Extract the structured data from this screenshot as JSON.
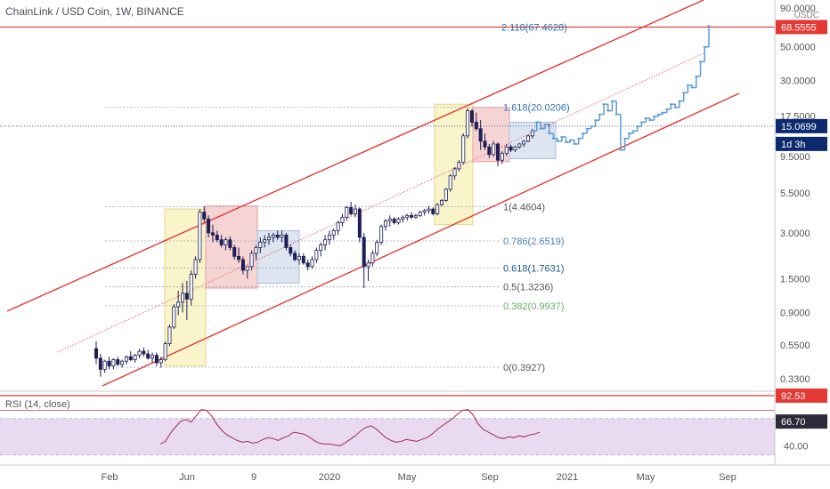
{
  "chart_title": "ChainLink / USD Coin, 1W, BINANCE",
  "quote_currency": "USDC",
  "rsi_label": "RSI (14, close)",
  "colors": {
    "channel": "#e53935",
    "candle_up": "#ffffff",
    "candle_down": "#1f1f55",
    "projection": "#5b9bd5",
    "rsi_line": "#9c2f4f",
    "rsi_band": "#e7d6ef",
    "yellow_box": "#f7f0b8",
    "red_box": "#f4c6c6",
    "blue_box": "#d2dceb",
    "price_badge": "#0d2a6e",
    "top_badge": "#e53935"
  },
  "chart_data": [
    {
      "type": "candlestick",
      "title": "ChainLink / USD Coin, 1W, BINANCE",
      "y_scale": "log",
      "y_ticks": [
        "90.0000",
        "50.0000",
        "30.0000",
        "17.5000",
        "9.5000",
        "5.5000",
        "3.0000",
        "1.5000",
        "0.9000",
        "0.5500",
        "0.3300"
      ],
      "x_ticks": [
        "Feb",
        "Jun",
        "9",
        "2020",
        "May",
        "Sep",
        "2021",
        "May",
        "Sep"
      ],
      "price_badges": {
        "current": "15.0699",
        "countdown": "1d 3h",
        "target": "68.5555"
      },
      "fib_levels": [
        {
          "label": "2.118(67.4628)",
          "value": 67.4628
        },
        {
          "label": "1.618(20.0206)",
          "value": 20.0206
        },
        {
          "label": "1(4.4604)",
          "value": 4.4604
        },
        {
          "label": "0.786(2.6519)",
          "value": 2.6519
        },
        {
          "label": "0.618(1.7631)",
          "value": 1.7631
        },
        {
          "label": "0.5(1.3236)",
          "value": 1.3236
        },
        {
          "label": "0.382(0.9937)",
          "value": 0.9937
        },
        {
          "label": "0(0.3927)",
          "value": 0.3927
        }
      ],
      "candles": [
        [
          0.52,
          0.58,
          0.41,
          0.45
        ],
        [
          0.45,
          0.48,
          0.34,
          0.38
        ],
        [
          0.38,
          0.44,
          0.36,
          0.43
        ],
        [
          0.43,
          0.46,
          0.38,
          0.4
        ],
        [
          0.4,
          0.45,
          0.38,
          0.44
        ],
        [
          0.44,
          0.46,
          0.4,
          0.41
        ],
        [
          0.41,
          0.44,
          0.39,
          0.43
        ],
        [
          0.43,
          0.47,
          0.41,
          0.46
        ],
        [
          0.46,
          0.5,
          0.43,
          0.44
        ],
        [
          0.44,
          0.48,
          0.42,
          0.47
        ],
        [
          0.47,
          0.52,
          0.45,
          0.5
        ],
        [
          0.5,
          0.53,
          0.46,
          0.48
        ],
        [
          0.48,
          0.51,
          0.44,
          0.45
        ],
        [
          0.45,
          0.49,
          0.42,
          0.47
        ],
        [
          0.47,
          0.49,
          0.4,
          0.42
        ],
        [
          0.42,
          0.46,
          0.39,
          0.44
        ],
        [
          0.44,
          0.58,
          0.43,
          0.56
        ],
        [
          0.56,
          0.75,
          0.54,
          0.72
        ],
        [
          0.72,
          1.02,
          0.7,
          0.98
        ],
        [
          0.98,
          1.25,
          0.86,
          1.05
        ],
        [
          1.05,
          1.4,
          0.9,
          1.2
        ],
        [
          1.2,
          1.45,
          0.8,
          1.1
        ],
        [
          1.1,
          1.7,
          1.0,
          1.6
        ],
        [
          1.6,
          2.1,
          1.5,
          2.0
        ],
        [
          2.0,
          4.3,
          1.9,
          4.1
        ],
        [
          4.1,
          4.5,
          3.5,
          3.7
        ],
        [
          3.7,
          3.9,
          2.8,
          3.0
        ],
        [
          3.0,
          3.4,
          2.6,
          2.9
        ],
        [
          2.9,
          3.1,
          2.6,
          2.7
        ],
        [
          2.7,
          2.9,
          2.4,
          2.5
        ],
        [
          2.5,
          2.8,
          2.3,
          2.7
        ],
        [
          2.7,
          2.85,
          2.3,
          2.4
        ],
        [
          2.4,
          2.5,
          2.0,
          2.1
        ],
        [
          2.1,
          2.4,
          1.9,
          2.0
        ],
        [
          2.0,
          2.1,
          1.6,
          1.7
        ],
        [
          1.7,
          1.8,
          1.5,
          1.8
        ],
        [
          1.8,
          2.3,
          1.7,
          2.2
        ],
        [
          2.2,
          2.5,
          2.0,
          2.4
        ],
        [
          2.4,
          2.8,
          2.2,
          2.6
        ],
        [
          2.6,
          2.9,
          2.4,
          2.7
        ],
        [
          2.7,
          3.0,
          2.5,
          2.8
        ],
        [
          2.8,
          3.0,
          2.6,
          2.9
        ],
        [
          2.9,
          3.1,
          2.7,
          2.8
        ],
        [
          2.8,
          3.1,
          2.6,
          2.9
        ],
        [
          2.9,
          3.0,
          2.3,
          2.4
        ],
        [
          2.4,
          2.5,
          2.1,
          2.2
        ],
        [
          2.2,
          2.3,
          1.95,
          2.0
        ],
        [
          2.0,
          2.2,
          1.85,
          2.1
        ],
        [
          2.1,
          2.2,
          1.85,
          1.9
        ],
        [
          1.9,
          2.0,
          1.7,
          1.8
        ],
        [
          1.8,
          2.1,
          1.75,
          2.0
        ],
        [
          2.0,
          2.4,
          1.9,
          2.3
        ],
        [
          2.3,
          2.6,
          2.1,
          2.5
        ],
        [
          2.5,
          2.9,
          2.3,
          2.7
        ],
        [
          2.7,
          3.1,
          2.5,
          2.9
        ],
        [
          2.9,
          3.2,
          2.7,
          3.1
        ],
        [
          3.1,
          3.6,
          2.9,
          3.5
        ],
        [
          3.5,
          4.0,
          3.3,
          3.8
        ],
        [
          3.8,
          4.5,
          3.6,
          4.4
        ],
        [
          4.4,
          4.8,
          3.9,
          4.0
        ],
        [
          4.0,
          4.6,
          3.8,
          4.3
        ],
        [
          4.3,
          4.4,
          2.6,
          2.8
        ],
        [
          2.8,
          3.0,
          1.3,
          1.8
        ],
        [
          1.8,
          2.0,
          1.45,
          1.9
        ],
        [
          1.9,
          2.3,
          1.8,
          2.2
        ],
        [
          2.2,
          2.7,
          2.1,
          2.6
        ],
        [
          2.6,
          3.4,
          2.5,
          3.3
        ],
        [
          3.3,
          3.7,
          3.1,
          3.6
        ],
        [
          3.6,
          3.9,
          3.3,
          3.7
        ],
        [
          3.7,
          3.8,
          3.4,
          3.5
        ],
        [
          3.5,
          3.8,
          3.4,
          3.7
        ],
        [
          3.7,
          3.9,
          3.5,
          3.8
        ],
        [
          3.8,
          4.0,
          3.6,
          3.9
        ],
        [
          3.9,
          4.1,
          3.7,
          3.8
        ],
        [
          3.8,
          4.0,
          3.7,
          3.9
        ],
        [
          3.9,
          4.2,
          3.8,
          4.1
        ],
        [
          4.1,
          4.3,
          3.9,
          4.2
        ],
        [
          4.2,
          4.5,
          4.0,
          4.3
        ],
        [
          4.3,
          4.4,
          3.9,
          4.0
        ],
        [
          4.0,
          4.7,
          3.9,
          4.6
        ],
        [
          4.6,
          5.0,
          4.5,
          4.9
        ],
        [
          4.9,
          5.9,
          4.8,
          5.8
        ],
        [
          5.8,
          7.3,
          5.6,
          7.1
        ],
        [
          7.1,
          8.1,
          6.7,
          7.9
        ],
        [
          7.9,
          9.0,
          7.6,
          8.7
        ],
        [
          8.7,
          13.5,
          8.5,
          13.0
        ],
        [
          13.0,
          19.8,
          12.5,
          19.0
        ],
        [
          19.0,
          19.5,
          15.0,
          16.0
        ],
        [
          16.0,
          18.5,
          14.0,
          14.5
        ],
        [
          14.5,
          16.5,
          10.5,
          12.0
        ],
        [
          12.0,
          13.5,
          10.5,
          11.0
        ],
        [
          11.0,
          11.5,
          9.3,
          9.8
        ],
        [
          9.8,
          12.0,
          9.5,
          11.5
        ],
        [
          11.5,
          11.8,
          8.2,
          9.0
        ],
        [
          9.0,
          10.3,
          8.5,
          10.0
        ],
        [
          10.0,
          11.5,
          9.6,
          11.0
        ],
        [
          11.0,
          11.4,
          10.2,
          10.5
        ],
        [
          10.5,
          11.2,
          10.2,
          11.0
        ],
        [
          11.0,
          11.7,
          10.7,
          11.5
        ],
        [
          11.5,
          12.2,
          11.0,
          12.0
        ],
        [
          12.0,
          13.2,
          11.8,
          13.0
        ],
        [
          13.0,
          14.5,
          12.5,
          14.0
        ]
      ],
      "projection": [
        14.0,
        16.0,
        14.5,
        15.5,
        13.5,
        12.5,
        12.0,
        12.8,
        11.8,
        12.2,
        11.5,
        12.5,
        13.5,
        14.5,
        15.0,
        16.5,
        18.0,
        21.0,
        19.0,
        22.0,
        18.0,
        10.5,
        12.5,
        13.5,
        14.0,
        15.0,
        16.0,
        17.0,
        16.5,
        17.5,
        18.0,
        18.5,
        19.5,
        21.0,
        20.0,
        22.0,
        25.0,
        28.0,
        27.0,
        32.0,
        40.0,
        50.0,
        68.56
      ],
      "rsi": [
        42,
        45,
        54,
        61,
        67,
        69,
        66,
        73,
        80,
        79,
        73,
        64,
        57,
        52,
        49,
        46,
        44,
        45,
        43,
        44,
        47,
        49,
        48,
        46,
        49,
        51,
        55,
        54,
        53,
        50,
        46,
        43,
        42,
        42,
        41,
        40,
        43,
        47,
        51,
        56,
        60,
        62,
        59,
        54,
        49,
        46,
        44,
        45,
        47,
        46,
        45,
        47,
        49,
        53,
        58,
        62,
        66,
        70,
        75,
        79,
        80,
        74,
        64,
        58,
        55,
        52,
        49,
        48,
        50,
        49,
        51,
        50,
        52,
        53,
        55
      ],
      "rsi_levels": {
        "upper_badge": "92.53",
        "lower_badge": "66.70",
        "tick": "40.00"
      }
    }
  ]
}
